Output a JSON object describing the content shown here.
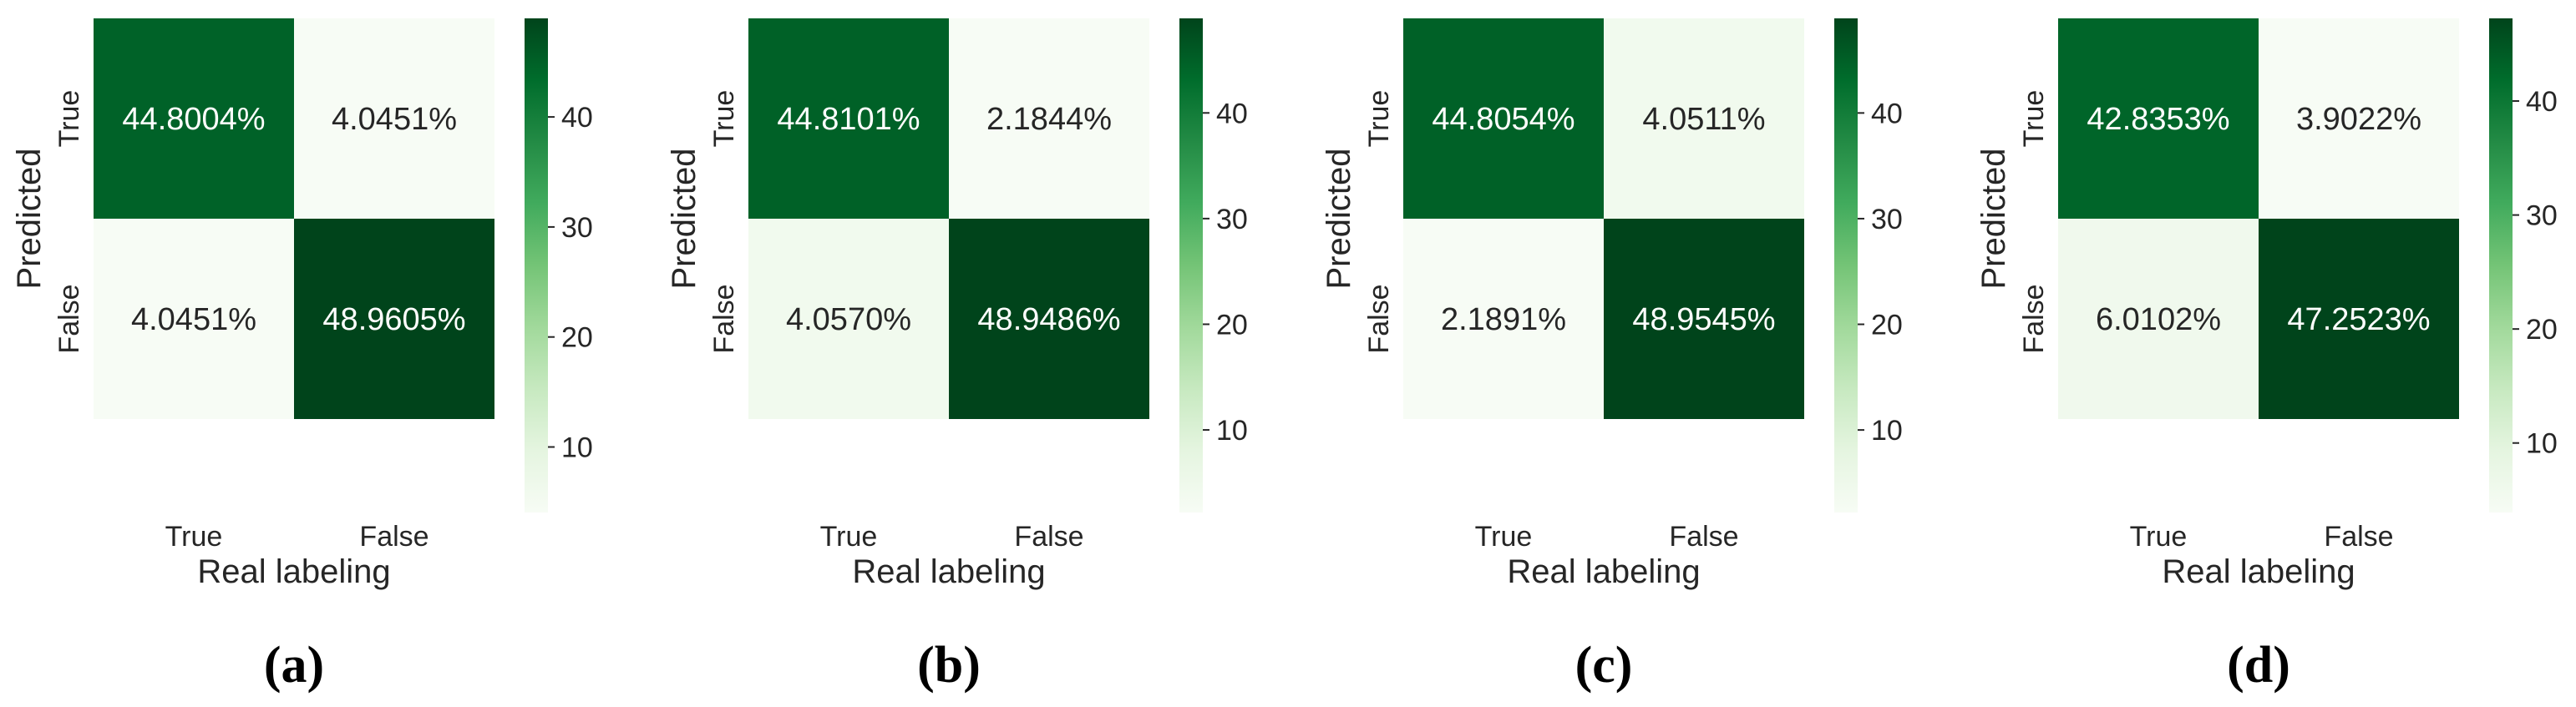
{
  "figure": {
    "panels": [
      {
        "caption": "(a)"
      },
      {
        "caption": "(b)"
      },
      {
        "caption": "(c)"
      },
      {
        "caption": "(d)"
      }
    ]
  },
  "colors": {
    "colormap": [
      "#f7fcf5",
      "#e5f5e0",
      "#c7e9c0",
      "#a1d99b",
      "#74c476",
      "#41ab5d",
      "#238b45",
      "#006d2c",
      "#00441b"
    ],
    "text_dark": "#262626",
    "text_light": "#ffffff"
  },
  "chart_data": [
    {
      "type": "heatmap",
      "title": "",
      "xlabel": "Real labeling",
      "ylabel": "Predicted",
      "x_categories": [
        "True",
        "False"
      ],
      "y_categories": [
        "True",
        "False"
      ],
      "values": [
        [
          44.8004,
          4.0451
        ],
        [
          4.0451,
          48.9605
        ]
      ],
      "cell_labels": [
        [
          "44.8004%",
          "4.0451%"
        ],
        [
          "4.0451%",
          "48.9605%"
        ]
      ],
      "colorbar": {
        "range": [
          4.0451,
          48.9605
        ],
        "ticks": [
          10,
          20,
          30,
          40
        ],
        "tick_labels": [
          "10",
          "20",
          "30",
          "40"
        ]
      }
    },
    {
      "type": "heatmap",
      "title": "",
      "xlabel": "Real labeling",
      "ylabel": "Predicted",
      "x_categories": [
        "True",
        "False"
      ],
      "y_categories": [
        "True",
        "False"
      ],
      "values": [
        [
          44.8101,
          2.1844
        ],
        [
          4.057,
          48.9486
        ]
      ],
      "cell_labels": [
        [
          "44.8101%",
          "2.1844%"
        ],
        [
          "4.0570%",
          "48.9486%"
        ]
      ],
      "colorbar": {
        "range": [
          2.1844,
          48.9486
        ],
        "ticks": [
          10,
          20,
          30,
          40
        ],
        "tick_labels": [
          "10",
          "20",
          "30",
          "40"
        ]
      }
    },
    {
      "type": "heatmap",
      "title": "",
      "xlabel": "Real labeling",
      "ylabel": "Predicted",
      "x_categories": [
        "True",
        "False"
      ],
      "y_categories": [
        "True",
        "False"
      ],
      "values": [
        [
          44.8054,
          4.0511
        ],
        [
          2.1891,
          48.9545
        ]
      ],
      "cell_labels": [
        [
          "44.8054%",
          "4.0511%"
        ],
        [
          "2.1891%",
          "48.9545%"
        ]
      ],
      "colorbar": {
        "range": [
          2.1891,
          48.9545
        ],
        "ticks": [
          10,
          20,
          30,
          40
        ],
        "tick_labels": [
          "10",
          "20",
          "30",
          "40"
        ]
      }
    },
    {
      "type": "heatmap",
      "title": "",
      "xlabel": "Real labeling",
      "ylabel": "Predicted",
      "x_categories": [
        "True",
        "False"
      ],
      "y_categories": [
        "True",
        "False"
      ],
      "values": [
        [
          42.8353,
          3.9022
        ],
        [
          6.0102,
          47.2523
        ]
      ],
      "cell_labels": [
        [
          "42.8353%",
          "3.9022%"
        ],
        [
          "6.0102%",
          "47.2523%"
        ]
      ],
      "colorbar": {
        "range": [
          3.9022,
          47.2523
        ],
        "ticks": [
          10,
          20,
          30,
          40
        ],
        "tick_labels": [
          "10",
          "20",
          "30",
          "40"
        ]
      }
    }
  ]
}
